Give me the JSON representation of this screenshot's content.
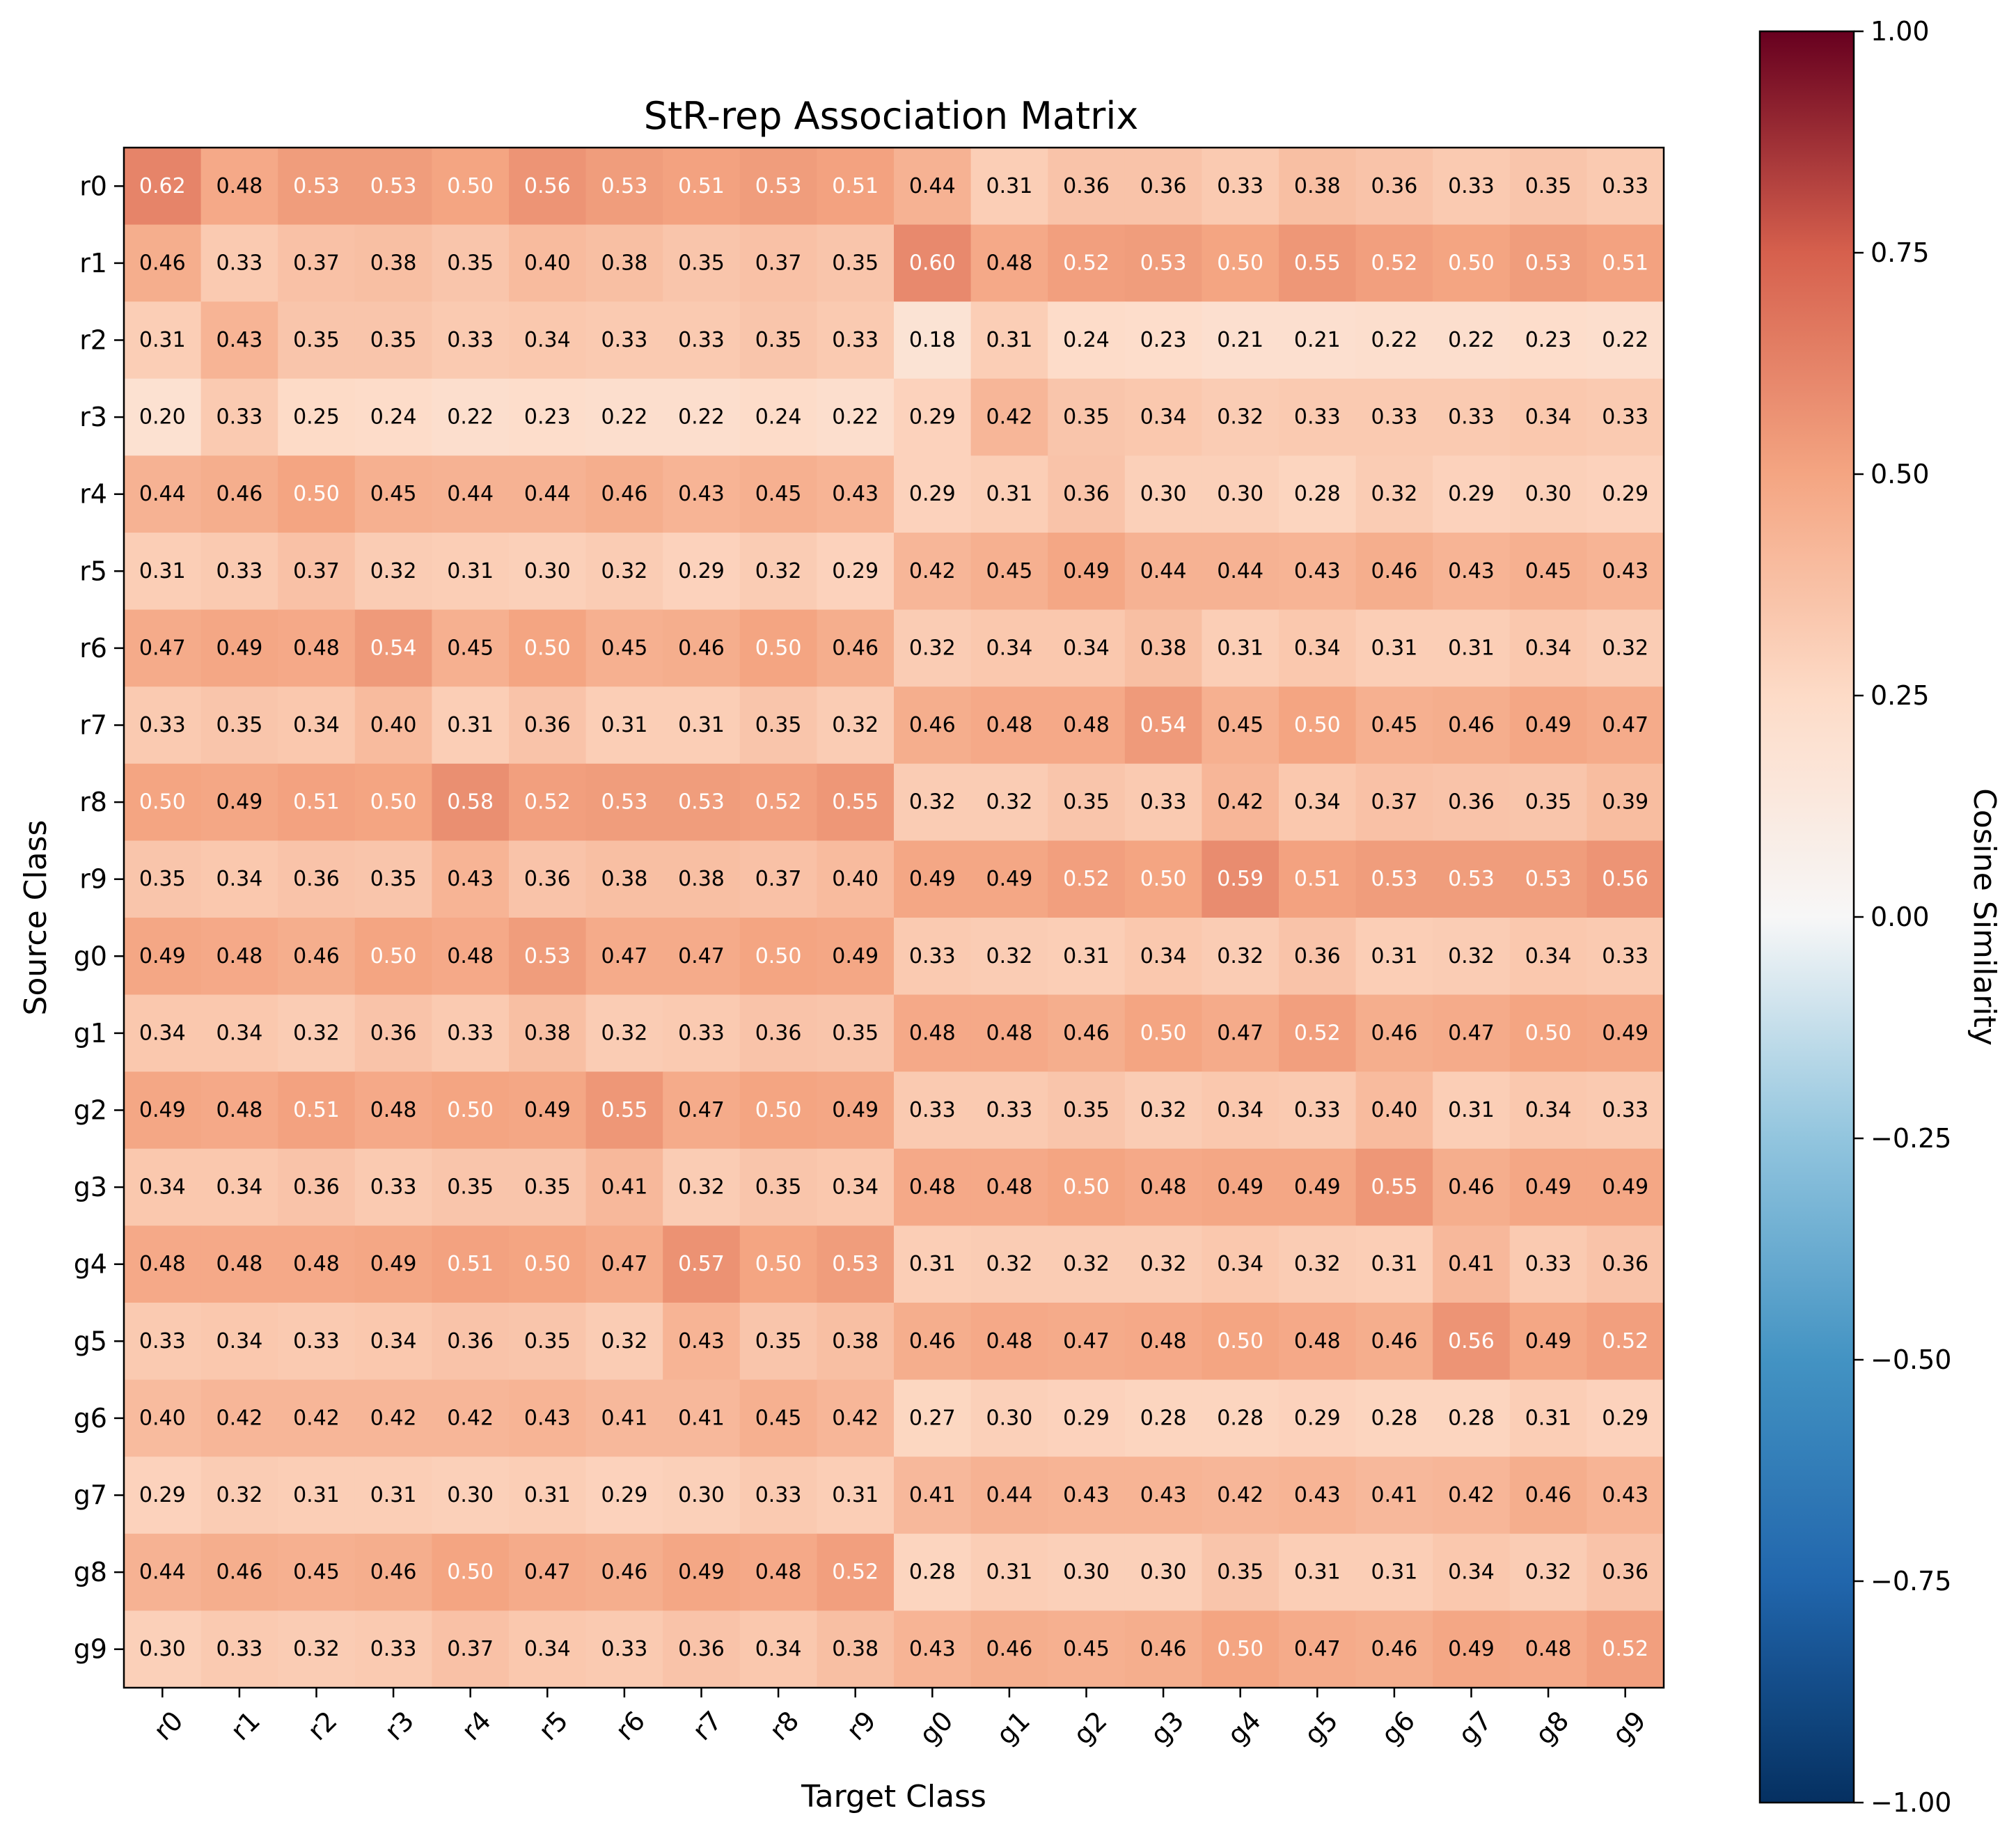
{
  "chart_data": {
    "type": "heatmap",
    "title": "StR-rep Association Matrix",
    "xlabel": "Target Class",
    "ylabel": "Source Class",
    "x_categories": [
      "r0",
      "r1",
      "r2",
      "r3",
      "r4",
      "r5",
      "r6",
      "r7",
      "r8",
      "r9",
      "g0",
      "g1",
      "g2",
      "g3",
      "g4",
      "g5",
      "g6",
      "g7",
      "g8",
      "g9"
    ],
    "y_categories": [
      "r0",
      "r1",
      "r2",
      "r3",
      "r4",
      "r5",
      "r6",
      "r7",
      "r8",
      "r9",
      "g0",
      "g1",
      "g2",
      "g3",
      "g4",
      "g5",
      "g6",
      "g7",
      "g8",
      "g9"
    ],
    "values": [
      [
        0.62,
        0.48,
        0.53,
        0.53,
        0.5,
        0.56,
        0.53,
        0.51,
        0.53,
        0.51,
        0.44,
        0.31,
        0.36,
        0.36,
        0.33,
        0.38,
        0.36,
        0.33,
        0.35,
        0.33
      ],
      [
        0.46,
        0.33,
        0.37,
        0.38,
        0.35,
        0.4,
        0.38,
        0.35,
        0.37,
        0.35,
        0.6,
        0.48,
        0.52,
        0.53,
        0.5,
        0.55,
        0.52,
        0.5,
        0.53,
        0.51
      ],
      [
        0.31,
        0.43,
        0.35,
        0.35,
        0.33,
        0.34,
        0.33,
        0.33,
        0.35,
        0.33,
        0.18,
        0.31,
        0.24,
        0.23,
        0.21,
        0.21,
        0.22,
        0.22,
        0.23,
        0.22
      ],
      [
        0.2,
        0.33,
        0.25,
        0.24,
        0.22,
        0.23,
        0.22,
        0.22,
        0.24,
        0.22,
        0.29,
        0.42,
        0.35,
        0.34,
        0.32,
        0.33,
        0.33,
        0.33,
        0.34,
        0.33
      ],
      [
        0.44,
        0.46,
        0.5,
        0.45,
        0.44,
        0.44,
        0.46,
        0.43,
        0.45,
        0.43,
        0.29,
        0.31,
        0.36,
        0.3,
        0.3,
        0.28,
        0.32,
        0.29,
        0.3,
        0.29
      ],
      [
        0.31,
        0.33,
        0.37,
        0.32,
        0.31,
        0.3,
        0.32,
        0.29,
        0.32,
        0.29,
        0.42,
        0.45,
        0.49,
        0.44,
        0.44,
        0.43,
        0.46,
        0.43,
        0.45,
        0.43
      ],
      [
        0.47,
        0.49,
        0.48,
        0.54,
        0.45,
        0.5,
        0.45,
        0.46,
        0.5,
        0.46,
        0.32,
        0.34,
        0.34,
        0.38,
        0.31,
        0.34,
        0.31,
        0.31,
        0.34,
        0.32
      ],
      [
        0.33,
        0.35,
        0.34,
        0.4,
        0.31,
        0.36,
        0.31,
        0.31,
        0.35,
        0.32,
        0.46,
        0.48,
        0.48,
        0.54,
        0.45,
        0.5,
        0.45,
        0.46,
        0.49,
        0.47
      ],
      [
        0.5,
        0.49,
        0.51,
        0.5,
        0.58,
        0.52,
        0.53,
        0.53,
        0.52,
        0.55,
        0.32,
        0.32,
        0.35,
        0.33,
        0.42,
        0.34,
        0.37,
        0.36,
        0.35,
        0.39
      ],
      [
        0.35,
        0.34,
        0.36,
        0.35,
        0.43,
        0.36,
        0.38,
        0.38,
        0.37,
        0.4,
        0.49,
        0.49,
        0.52,
        0.5,
        0.59,
        0.51,
        0.53,
        0.53,
        0.53,
        0.56
      ],
      [
        0.49,
        0.48,
        0.46,
        0.5,
        0.48,
        0.53,
        0.47,
        0.47,
        0.5,
        0.49,
        0.33,
        0.32,
        0.31,
        0.34,
        0.32,
        0.36,
        0.31,
        0.32,
        0.34,
        0.33
      ],
      [
        0.34,
        0.34,
        0.32,
        0.36,
        0.33,
        0.38,
        0.32,
        0.33,
        0.36,
        0.35,
        0.48,
        0.48,
        0.46,
        0.5,
        0.47,
        0.52,
        0.46,
        0.47,
        0.5,
        0.49
      ],
      [
        0.49,
        0.48,
        0.51,
        0.48,
        0.5,
        0.49,
        0.55,
        0.47,
        0.5,
        0.49,
        0.33,
        0.33,
        0.35,
        0.32,
        0.34,
        0.33,
        0.4,
        0.31,
        0.34,
        0.33
      ],
      [
        0.34,
        0.34,
        0.36,
        0.33,
        0.35,
        0.35,
        0.41,
        0.32,
        0.35,
        0.34,
        0.48,
        0.48,
        0.5,
        0.48,
        0.49,
        0.49,
        0.55,
        0.46,
        0.49,
        0.49
      ],
      [
        0.48,
        0.48,
        0.48,
        0.49,
        0.51,
        0.5,
        0.47,
        0.57,
        0.5,
        0.53,
        0.31,
        0.32,
        0.32,
        0.32,
        0.34,
        0.32,
        0.31,
        0.41,
        0.33,
        0.36
      ],
      [
        0.33,
        0.34,
        0.33,
        0.34,
        0.36,
        0.35,
        0.32,
        0.43,
        0.35,
        0.38,
        0.46,
        0.48,
        0.47,
        0.48,
        0.5,
        0.48,
        0.46,
        0.56,
        0.49,
        0.52
      ],
      [
        0.4,
        0.42,
        0.42,
        0.42,
        0.42,
        0.43,
        0.41,
        0.41,
        0.45,
        0.42,
        0.27,
        0.3,
        0.29,
        0.28,
        0.28,
        0.29,
        0.28,
        0.28,
        0.31,
        0.29
      ],
      [
        0.29,
        0.32,
        0.31,
        0.31,
        0.3,
        0.31,
        0.29,
        0.3,
        0.33,
        0.31,
        0.41,
        0.44,
        0.43,
        0.43,
        0.42,
        0.43,
        0.41,
        0.42,
        0.46,
        0.43
      ],
      [
        0.44,
        0.46,
        0.45,
        0.46,
        0.5,
        0.47,
        0.46,
        0.49,
        0.48,
        0.52,
        0.28,
        0.31,
        0.3,
        0.3,
        0.35,
        0.31,
        0.31,
        0.34,
        0.32,
        0.36
      ],
      [
        0.3,
        0.33,
        0.32,
        0.33,
        0.37,
        0.34,
        0.33,
        0.36,
        0.34,
        0.38,
        0.43,
        0.46,
        0.45,
        0.46,
        0.5,
        0.47,
        0.46,
        0.49,
        0.48,
        0.52
      ]
    ],
    "value_range": [
      -1.0,
      1.0
    ],
    "colormap": "RdBu_r",
    "colorbar": {
      "label": "Cosine Similarity",
      "ticks": [
        1.0,
        0.75,
        0.5,
        0.25,
        0.0,
        -0.25,
        -0.5,
        -0.75,
        -1.0
      ],
      "tick_labels": [
        "1.00",
        "0.75",
        "0.50",
        "0.25",
        "0.00",
        "−0.25",
        "−0.50",
        "−0.75",
        "−1.00"
      ]
    },
    "cell_labels": true,
    "grid": false
  }
}
